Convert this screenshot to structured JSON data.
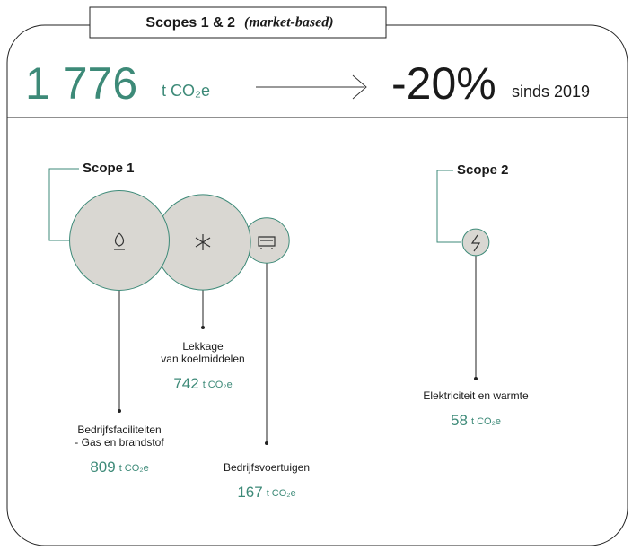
{
  "header": {
    "title": "Scopes 1 & 2",
    "subtitle": "(market-based)"
  },
  "summary": {
    "total": "1 776",
    "unit": "t CO₂e",
    "change": "-20%",
    "since": "sinds 2019"
  },
  "groups": [
    {
      "label": "Scope 1"
    },
    {
      "label": "Scope 2"
    }
  ],
  "items": [
    {
      "label": [
        "Bedrijfsfaciliteiten",
        "- Gas en brandstof"
      ],
      "value": 809,
      "unit": "t CO₂e"
    },
    {
      "label": [
        "Lekkage",
        "van koelmiddelen"
      ],
      "value": 742,
      "unit": "t CO₂e"
    },
    {
      "label": [
        "Bedrijfsvoertuigen"
      ],
      "value": 167,
      "unit": "t CO₂e"
    },
    {
      "label": [
        "Elektriciteit en warmte"
      ],
      "value": 58,
      "unit": "t CO₂e"
    }
  ]
}
